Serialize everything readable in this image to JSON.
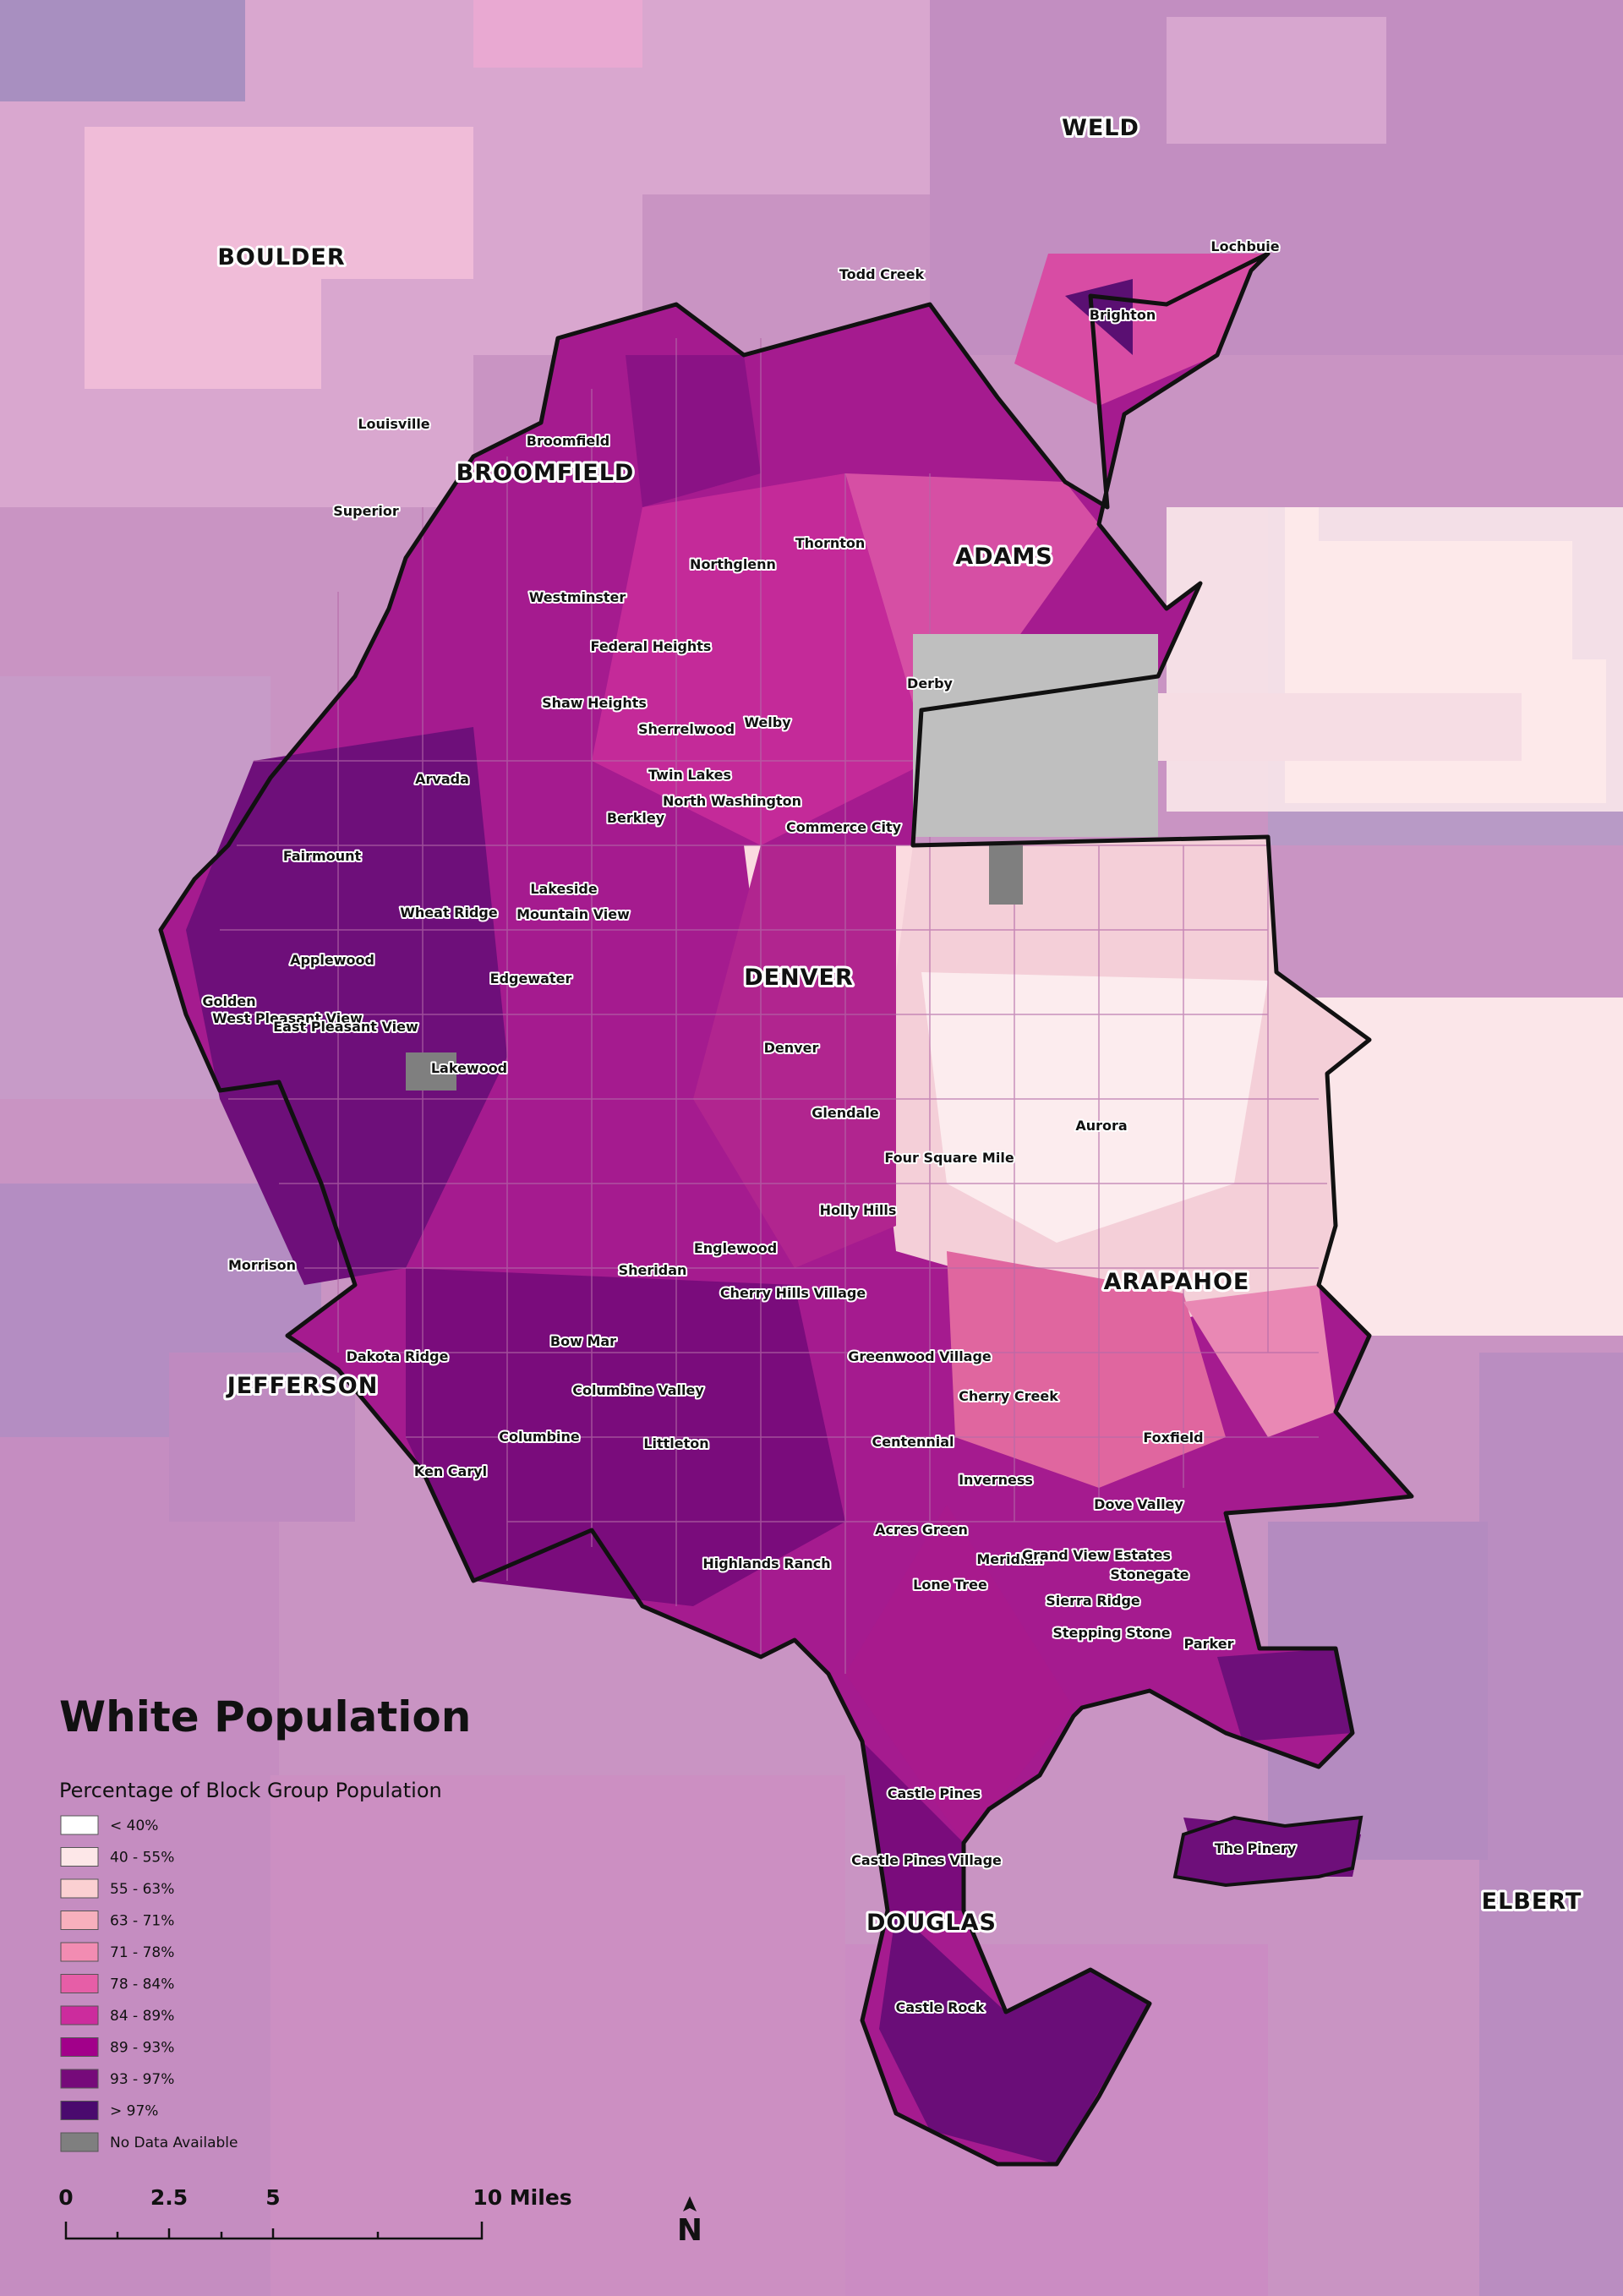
{
  "map": {
    "title": "White Population",
    "subtitle": "Percentage of Block Group Population"
  },
  "legend": [
    {
      "label": "< 40%",
      "color": "#ffffff"
    },
    {
      "label": "40 - 55%",
      "color": "#fde7e8"
    },
    {
      "label": "55 - 63%",
      "color": "#fbd0d2"
    },
    {
      "label": "63 - 71%",
      "color": "#f7b0bd"
    },
    {
      "label": "71 - 78%",
      "color": "#f28cb2"
    },
    {
      "label": "78 - 84%",
      "color": "#e65ea7"
    },
    {
      "label": "84 - 89%",
      "color": "#cc2c9d"
    },
    {
      "label": "89 - 93%",
      "color": "#a2008a"
    },
    {
      "label": "93 - 97%",
      "color": "#760a7a"
    },
    {
      "label": "> 97%",
      "color": "#4a0a6e"
    },
    {
      "label": "No Data Available",
      "color": "#7f7f7f"
    }
  ],
  "scale": {
    "ticks": [
      "0",
      "2.5",
      "5",
      "10 Miles"
    ]
  },
  "north": "N",
  "counties": [
    {
      "name": "WELD"
    },
    {
      "name": "BOULDER"
    },
    {
      "name": "BROOMFIELD"
    },
    {
      "name": "ADAMS"
    },
    {
      "name": "DENVER"
    },
    {
      "name": "ARAPAHOE"
    },
    {
      "name": "JEFFERSON"
    },
    {
      "name": "DOUGLAS"
    },
    {
      "name": "ELBERT"
    }
  ],
  "places": [
    {
      "name": "Lochbuie"
    },
    {
      "name": "Todd Creek"
    },
    {
      "name": "Brighton"
    },
    {
      "name": "Louisville"
    },
    {
      "name": "Broomfield"
    },
    {
      "name": "Superior"
    },
    {
      "name": "Thornton"
    },
    {
      "name": "Northglenn"
    },
    {
      "name": "Westminster"
    },
    {
      "name": "Federal Heights"
    },
    {
      "name": "Shaw Heights"
    },
    {
      "name": "Sherrelwood"
    },
    {
      "name": "Welby"
    },
    {
      "name": "Derby"
    },
    {
      "name": "Twin Lakes"
    },
    {
      "name": "Arvada"
    },
    {
      "name": "North Washington"
    },
    {
      "name": "Berkley"
    },
    {
      "name": "Commerce City"
    },
    {
      "name": "Fairmount"
    },
    {
      "name": "Lakeside"
    },
    {
      "name": "Wheat Ridge"
    },
    {
      "name": "Mountain View"
    },
    {
      "name": "Applewood"
    },
    {
      "name": "Edgewater"
    },
    {
      "name": "Golden"
    },
    {
      "name": "West Pleasant View"
    },
    {
      "name": "East Pleasant View"
    },
    {
      "name": "Lakewood"
    },
    {
      "name": "Denver"
    },
    {
      "name": "Glendale"
    },
    {
      "name": "Aurora"
    },
    {
      "name": "Four Square Mile"
    },
    {
      "name": "Holly Hills"
    },
    {
      "name": "Morrison"
    },
    {
      "name": "Englewood"
    },
    {
      "name": "Sheridan"
    },
    {
      "name": "Cherry Hills Village"
    },
    {
      "name": "Bow Mar"
    },
    {
      "name": "Dakota Ridge"
    },
    {
      "name": "Greenwood Village"
    },
    {
      "name": "Cherry Creek"
    },
    {
      "name": "Columbine Valley"
    },
    {
      "name": "Columbine"
    },
    {
      "name": "Littleton"
    },
    {
      "name": "Centennial"
    },
    {
      "name": "Foxfield"
    },
    {
      "name": "Ken Caryl"
    },
    {
      "name": "Inverness"
    },
    {
      "name": "Dove Valley"
    },
    {
      "name": "Acres Green"
    },
    {
      "name": "Meridian"
    },
    {
      "name": "Grand View Estates"
    },
    {
      "name": "Highlands Ranch"
    },
    {
      "name": "Stonegate"
    },
    {
      "name": "Lone Tree"
    },
    {
      "name": "Sierra Ridge"
    },
    {
      "name": "Stepping Stone"
    },
    {
      "name": "Parker"
    },
    {
      "name": "Castle Pines"
    },
    {
      "name": "Castle Pines Village"
    },
    {
      "name": "The Pinery"
    },
    {
      "name": "Castle Rock"
    }
  ]
}
